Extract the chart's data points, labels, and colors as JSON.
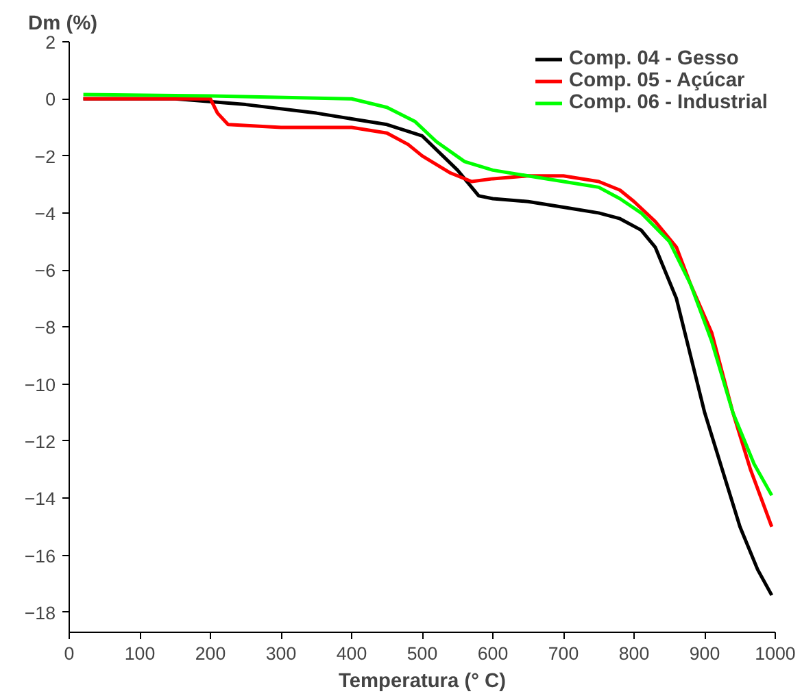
{
  "chart_data": {
    "type": "line",
    "ylabel": "Dm (%)",
    "xlabel": "Temperatura (° C)",
    "xlim": [
      0,
      1000
    ],
    "xticks": [
      0,
      100,
      200,
      300,
      400,
      500,
      600,
      700,
      800,
      900,
      1000
    ],
    "ylim": [
      -18.7,
      2
    ],
    "yticks": [
      2,
      0,
      -2,
      -4,
      -6,
      -8,
      -10,
      -12,
      -14,
      -16,
      -18
    ],
    "grid": false,
    "legend": "top right",
    "line_style": "solid",
    "marker": "none",
    "series": [
      {
        "name": "Comp. 04 - Gesso",
        "color": "#000000",
        "x": [
          20,
          150,
          250,
          350,
          400,
          450,
          500,
          550,
          580,
          600,
          650,
          700,
          750,
          780,
          810,
          830,
          860,
          880,
          900,
          925,
          950,
          975,
          995
        ],
        "values": [
          0,
          0,
          -0.2,
          -0.5,
          -0.7,
          -0.9,
          -1.3,
          -2.5,
          -3.4,
          -3.5,
          -3.6,
          -3.8,
          -4.0,
          -4.2,
          -4.6,
          -5.2,
          -7,
          -9,
          -11,
          -13,
          -15,
          -16.5,
          -17.4
        ]
      },
      {
        "name": "Comp. 05 - Açúcar",
        "color": "#ff0000",
        "x": [
          20,
          200,
          210,
          225,
          300,
          400,
          450,
          480,
          500,
          540,
          570,
          600,
          650,
          700,
          750,
          780,
          800,
          830,
          860,
          880,
          910,
          940,
          965,
          995
        ],
        "values": [
          0,
          0,
          -0.5,
          -0.9,
          -1.0,
          -1.0,
          -1.2,
          -1.6,
          -2.0,
          -2.6,
          -2.9,
          -2.8,
          -2.7,
          -2.7,
          -2.9,
          -3.2,
          -3.6,
          -4.3,
          -5.2,
          -6.5,
          -8.2,
          -11,
          -13,
          -15
        ]
      },
      {
        "name": "Comp. 06 - Industrial",
        "color": "#00ff00",
        "x": [
          20,
          200,
          400,
          450,
          490,
          520,
          560,
          600,
          650,
          700,
          750,
          780,
          810,
          850,
          880,
          910,
          940,
          970,
          995
        ],
        "values": [
          0.15,
          0.1,
          0,
          -0.3,
          -0.8,
          -1.5,
          -2.2,
          -2.5,
          -2.7,
          -2.9,
          -3.1,
          -3.5,
          -4,
          -5,
          -6.5,
          -8.5,
          -11,
          -12.8,
          -13.9
        ]
      }
    ]
  }
}
